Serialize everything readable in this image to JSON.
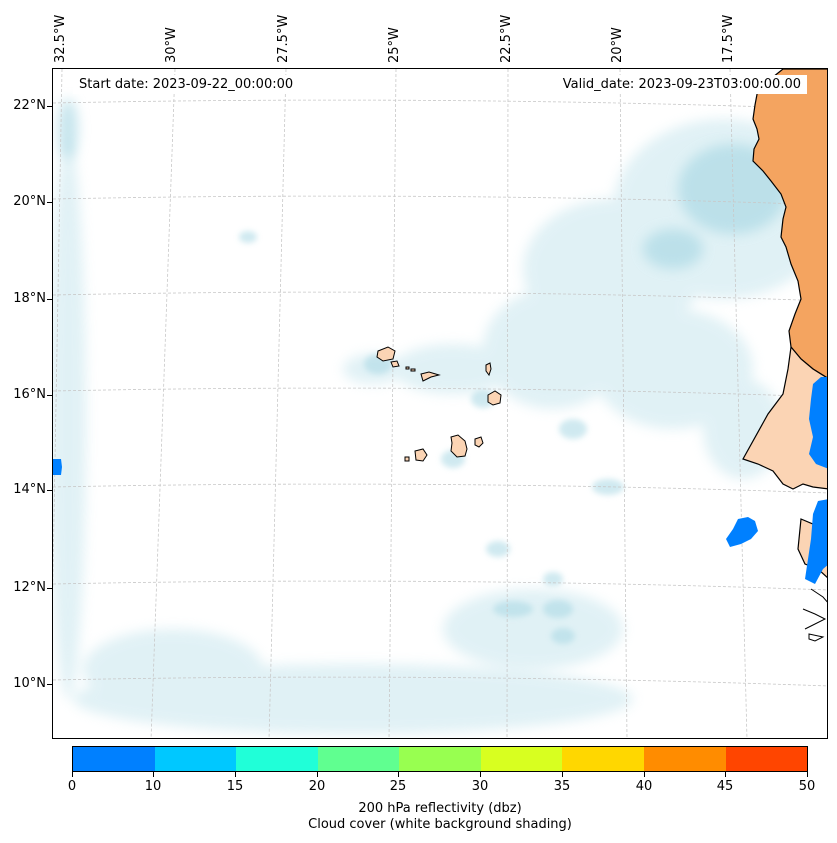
{
  "map": {
    "start_date": "Start date: 2023-09-22_00:00:00",
    "valid_date": "Valid_date: 2023-09-23T03:00:00.00",
    "longitude_labels": [
      "32.5°W",
      "30°W",
      "27.5°W",
      "25°W",
      "22.5°W",
      "20°W",
      "17.5°W"
    ],
    "latitude_labels": [
      "22°N",
      "20°N",
      "18°N",
      "16°N",
      "14°N",
      "12°N",
      "10°N"
    ],
    "colors": {
      "land": "#f4a460",
      "land_light": "#fbd4b4",
      "cloud": "#a9d8e4",
      "reflectivity_low": "#0080ff",
      "gridline": "#c8c8c8"
    }
  },
  "colorbar": {
    "tick_labels": [
      "0",
      "10",
      "15",
      "20",
      "25",
      "30",
      "35",
      "40",
      "45",
      "50"
    ],
    "colors": [
      "#0080ff",
      "#00c8ff",
      "#20ffd8",
      "#60ff90",
      "#98ff50",
      "#d8ff20",
      "#ffd700",
      "#ff8c00",
      "#ff4500"
    ],
    "title_line1": "200 hPa reflectivity (dbz)",
    "title_line2": "Cloud cover (white background shading)"
  }
}
